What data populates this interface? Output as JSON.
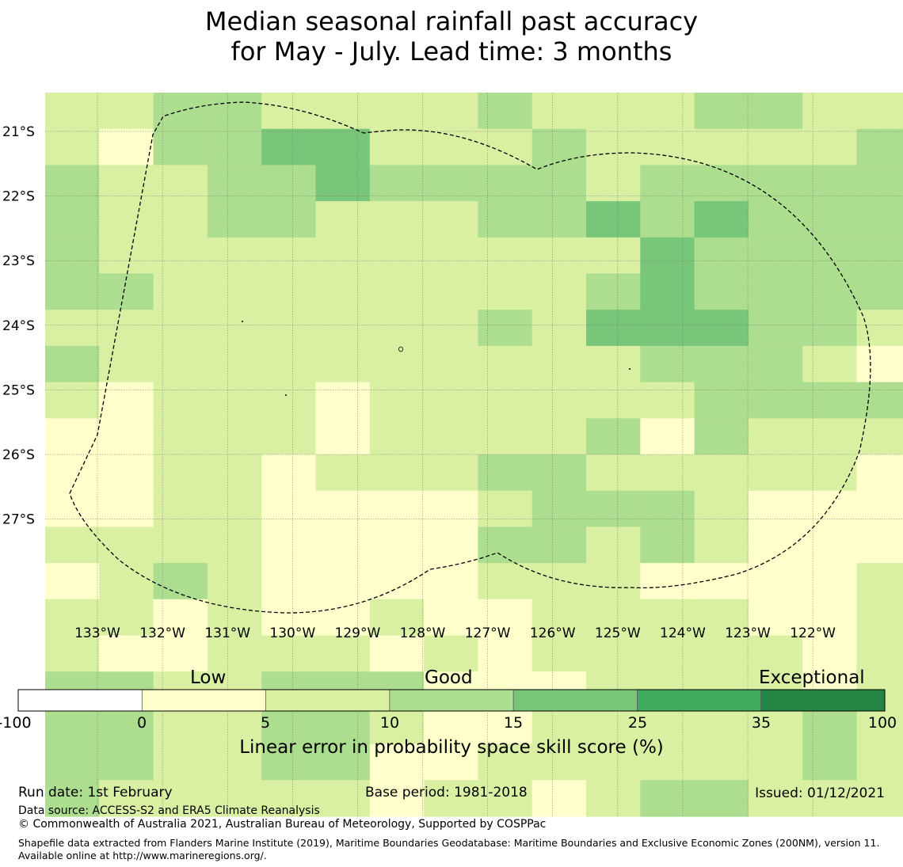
{
  "title": {
    "line1": "Median seasonal rainfall past accuracy",
    "line2": "for May - July. Lead time: 3 months"
  },
  "map": {
    "lon_labels": [
      "133°W",
      "132°W",
      "131°W",
      "130°W",
      "129°W",
      "128°W",
      "127°W",
      "126°W",
      "125°W",
      "124°W",
      "123°W",
      "122°W"
    ],
    "lat_labels": [
      "21°S",
      "22°S",
      "23°S",
      "24°S",
      "25°S",
      "26°S",
      "27°S"
    ],
    "legend_colors": [
      "#ffffff",
      "#ffffcc",
      "#d9f0a3",
      "#addd8e",
      "#78c679",
      "#41ab5d",
      "#238443"
    ],
    "grid": [
      "1122111121112211",
      "1022331112111112",
      "2112232222122222",
      "2112211122323222",
      "2111111111132222",
      "2211111111232222",
      "1111111121333221",
      "2111111111122210",
      "1011101111112222",
      "0011101111202111",
      "0011011122111110",
      "0011000012221000",
      "1111000022121000",
      "0121000011100001",
      "1101001001111001",
      "1001110101111101",
      "2211222000111101",
      "2211221001111121",
      "2211220011111121",
      "2111110110122111"
    ]
  },
  "colorbar": {
    "category_labels": [
      "Low",
      "Good",
      "Exceptional"
    ],
    "ticks": [
      "-100",
      "0",
      "5",
      "10",
      "15",
      "25",
      "35",
      "100"
    ],
    "title": "Linear error in probability space skill score (%)"
  },
  "footer": {
    "run_date": "Run date: 1st February",
    "base_period": "Base period: 1981-2018",
    "issued": "Issued: 01/12/2021",
    "data_source": "Data source: ACCESS-S2 and ERA5 Climate Reanalysis",
    "copyright": "© Commonwealth of Australia 2021, Australian Bureau of Meteorology, Supported by COSPPac",
    "shapefile": "Shapefile data extracted from Flanders Marine Institute (2019), Maritime Boundaries Geodatabase: Maritime Boundaries and Exclusive Economic Zones (200NM), version 11. Available online at http://www.marineregions.org/."
  }
}
